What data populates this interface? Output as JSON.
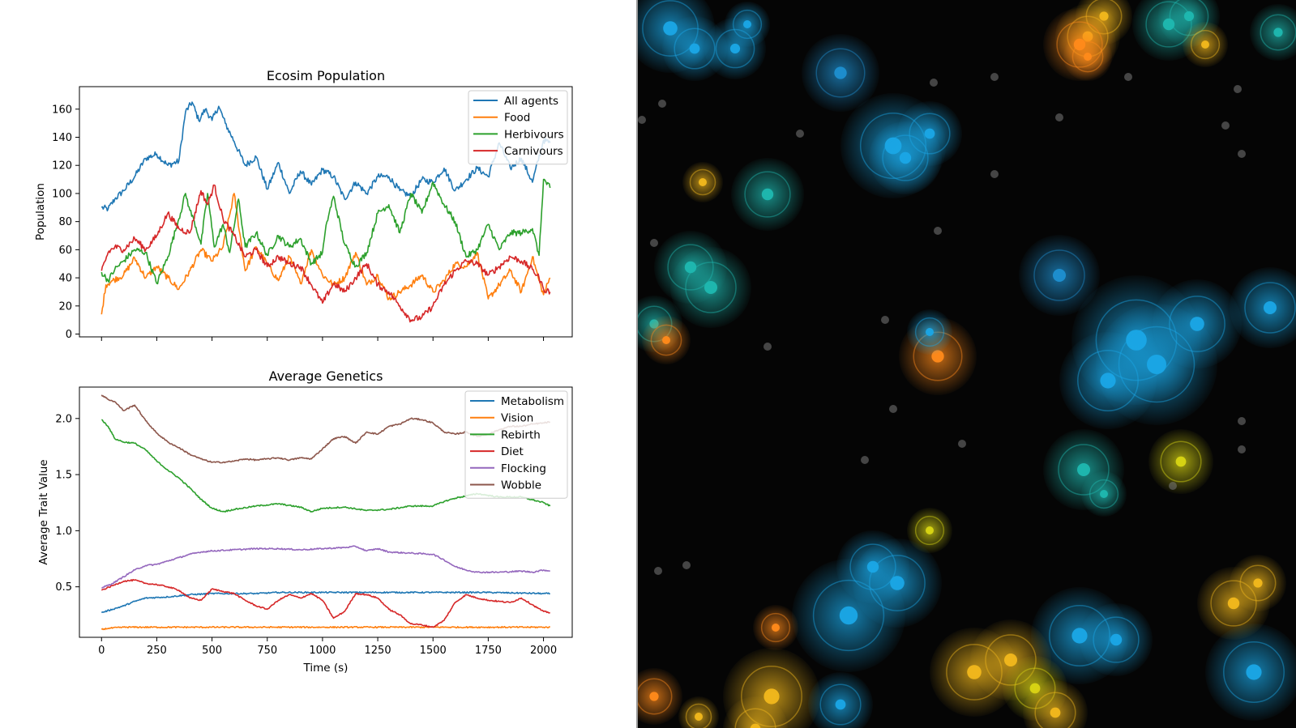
{
  "colors": {
    "blue": "#1f77b4",
    "orange": "#ff7f0e",
    "green": "#2ca02c",
    "red": "#d62728",
    "purple": "#9467bd",
    "brown": "#8c564b"
  },
  "chart_data": [
    {
      "type": "line",
      "title": "Ecosim Population",
      "xlabel": "",
      "ylabel": "Population",
      "xlim": [
        -100,
        2130
      ],
      "ylim": [
        -2,
        176
      ],
      "xticks": [
        0,
        250,
        500,
        750,
        1000,
        1250,
        1500,
        1750,
        2000
      ],
      "xtick_labels_shown": false,
      "yticks": [
        0,
        20,
        40,
        60,
        80,
        100,
        120,
        140,
        160
      ],
      "ytick_labels": [
        "0",
        "20",
        "40",
        "60",
        "80",
        "100",
        "120",
        "140",
        "160"
      ],
      "legend": "top-right",
      "series": [
        {
          "name": "All agents",
          "color_key": "blue",
          "x": [
            0,
            30,
            60,
            100,
            150,
            200,
            250,
            300,
            350,
            380,
            410,
            440,
            470,
            500,
            530,
            560,
            600,
            650,
            700,
            750,
            800,
            850,
            900,
            950,
            1000,
            1050,
            1100,
            1150,
            1200,
            1250,
            1300,
            1350,
            1400,
            1450,
            1500,
            1550,
            1600,
            1650,
            1700,
            1750,
            1800,
            1850,
            1900,
            1950,
            2000,
            2030
          ],
          "y": [
            90,
            89,
            96,
            102,
            112,
            125,
            128,
            120,
            123,
            158,
            165,
            152,
            160,
            152,
            162,
            150,
            137,
            120,
            126,
            103,
            122,
            100,
            116,
            106,
            117,
            112,
            96,
            108,
            100,
            112,
            112,
            102,
            98,
            110,
            108,
            118,
            102,
            110,
            118,
            112,
            136,
            118,
            125,
            108,
            138,
            136
          ]
        },
        {
          "name": "Food",
          "color_key": "orange",
          "x": [
            0,
            20,
            50,
            100,
            150,
            200,
            250,
            300,
            350,
            400,
            450,
            500,
            550,
            600,
            650,
            700,
            750,
            800,
            850,
            900,
            950,
            1000,
            1050,
            1100,
            1150,
            1200,
            1250,
            1300,
            1350,
            1400,
            1450,
            1500,
            1550,
            1600,
            1650,
            1700,
            1750,
            1800,
            1850,
            1900,
            1950,
            1980,
            2000,
            2030
          ],
          "y": [
            14,
            35,
            38,
            42,
            54,
            40,
            48,
            40,
            32,
            45,
            60,
            52,
            62,
            100,
            45,
            62,
            50,
            38,
            55,
            36,
            60,
            42,
            35,
            40,
            58,
            35,
            42,
            25,
            30,
            35,
            42,
            30,
            38,
            50,
            48,
            58,
            25,
            35,
            45,
            30,
            55,
            38,
            28,
            40
          ]
        },
        {
          "name": "Herbivours",
          "color_key": "green",
          "x": [
            0,
            30,
            60,
            100,
            150,
            200,
            250,
            300,
            350,
            380,
            400,
            420,
            450,
            480,
            510,
            550,
            580,
            620,
            650,
            700,
            750,
            800,
            850,
            900,
            950,
            1000,
            1020,
            1050,
            1100,
            1150,
            1200,
            1250,
            1300,
            1350,
            1400,
            1450,
            1500,
            1550,
            1600,
            1650,
            1700,
            1750,
            1800,
            1850,
            1900,
            1950,
            1980,
            2000,
            2030
          ],
          "y": [
            44,
            38,
            46,
            52,
            60,
            58,
            36,
            55,
            82,
            100,
            88,
            80,
            64,
            100,
            62,
            78,
            58,
            96,
            62,
            72,
            56,
            70,
            62,
            68,
            50,
            58,
            80,
            98,
            64,
            48,
            58,
            86,
            92,
            72,
            100,
            86,
            108,
            92,
            80,
            55,
            60,
            78,
            60,
            72,
            72,
            75,
            56,
            110,
            104
          ]
        },
        {
          "name": "Carnivours",
          "color_key": "red",
          "x": [
            0,
            30,
            60,
            100,
            150,
            200,
            250,
            300,
            350,
            400,
            450,
            480,
            510,
            550,
            600,
            650,
            700,
            750,
            800,
            850,
            900,
            950,
            1000,
            1050,
            1100,
            1150,
            1200,
            1250,
            1300,
            1350,
            1400,
            1450,
            1500,
            1550,
            1600,
            1650,
            1700,
            1750,
            1800,
            1850,
            1900,
            1950,
            1980,
            2000,
            2030
          ],
          "y": [
            45,
            58,
            62,
            60,
            68,
            60,
            70,
            86,
            75,
            72,
            102,
            92,
            106,
            82,
            70,
            55,
            60,
            48,
            55,
            50,
            48,
            35,
            22,
            36,
            30,
            40,
            50,
            35,
            30,
            20,
            10,
            12,
            20,
            35,
            45,
            52,
            50,
            42,
            48,
            55,
            52,
            46,
            40,
            32,
            30
          ]
        }
      ]
    },
    {
      "type": "line",
      "title": "Average Genetics",
      "xlabel": "Time (s)",
      "ylabel": "Average Trait Value",
      "xlim": [
        -100,
        2130
      ],
      "ylim": [
        0.05,
        2.28
      ],
      "xticks": [
        0,
        250,
        500,
        750,
        1000,
        1250,
        1500,
        1750,
        2000
      ],
      "xtick_labels": [
        "0",
        "250",
        "500",
        "750",
        "1000",
        "1250",
        "1500",
        "1750",
        "2000"
      ],
      "yticks": [
        0.5,
        1.0,
        1.5,
        2.0
      ],
      "ytick_labels": [
        "0.5",
        "1.0",
        "1.5",
        "2.0"
      ],
      "legend": "top-right",
      "series": [
        {
          "name": "Metabolism",
          "color_key": "blue",
          "x": [
            0,
            50,
            100,
            150,
            200,
            300,
            400,
            500,
            600,
            700,
            800,
            1000,
            1200,
            1500,
            1750,
            2000,
            2030
          ],
          "y": [
            0.27,
            0.3,
            0.33,
            0.37,
            0.4,
            0.41,
            0.43,
            0.44,
            0.44,
            0.44,
            0.45,
            0.45,
            0.45,
            0.45,
            0.45,
            0.44,
            0.44
          ]
        },
        {
          "name": "Vision",
          "color_key": "orange",
          "x": [
            0,
            30,
            100,
            500,
            1000,
            1500,
            2000,
            2030
          ],
          "y": [
            0.12,
            0.13,
            0.14,
            0.14,
            0.14,
            0.14,
            0.14,
            0.14
          ]
        },
        {
          "name": "Rebirth",
          "color_key": "green",
          "x": [
            0,
            30,
            60,
            100,
            150,
            200,
            250,
            300,
            350,
            400,
            450,
            500,
            550,
            600,
            700,
            800,
            900,
            950,
            1000,
            1100,
            1200,
            1300,
            1400,
            1500,
            1550,
            1600,
            1650,
            1700,
            1800,
            1900,
            2000,
            2030
          ],
          "y": [
            1.99,
            1.93,
            1.82,
            1.79,
            1.78,
            1.72,
            1.62,
            1.54,
            1.47,
            1.38,
            1.28,
            1.2,
            1.17,
            1.19,
            1.22,
            1.24,
            1.21,
            1.17,
            1.2,
            1.21,
            1.18,
            1.19,
            1.22,
            1.22,
            1.26,
            1.29,
            1.31,
            1.33,
            1.3,
            1.3,
            1.25,
            1.22
          ]
        },
        {
          "name": "Diet",
          "color_key": "red",
          "x": [
            0,
            50,
            100,
            150,
            200,
            250,
            300,
            350,
            400,
            450,
            500,
            550,
            600,
            650,
            700,
            750,
            800,
            850,
            900,
            950,
            1000,
            1050,
            1100,
            1150,
            1200,
            1250,
            1300,
            1350,
            1400,
            1450,
            1500,
            1550,
            1600,
            1650,
            1700,
            1750,
            1800,
            1850,
            1900,
            1950,
            2000,
            2030
          ],
          "y": [
            0.47,
            0.51,
            0.55,
            0.56,
            0.53,
            0.52,
            0.5,
            0.47,
            0.4,
            0.38,
            0.48,
            0.46,
            0.44,
            0.38,
            0.33,
            0.3,
            0.38,
            0.43,
            0.4,
            0.44,
            0.38,
            0.22,
            0.28,
            0.44,
            0.43,
            0.4,
            0.3,
            0.25,
            0.17,
            0.16,
            0.14,
            0.2,
            0.36,
            0.43,
            0.4,
            0.38,
            0.37,
            0.36,
            0.4,
            0.34,
            0.28,
            0.27
          ]
        },
        {
          "name": "Flocking",
          "color_key": "purple",
          "x": [
            0,
            50,
            100,
            150,
            200,
            250,
            300,
            350,
            400,
            450,
            500,
            600,
            700,
            800,
            900,
            1000,
            1100,
            1150,
            1200,
            1250,
            1300,
            1400,
            1500,
            1550,
            1600,
            1650,
            1700,
            1800,
            1900,
            1950,
            2000,
            2030
          ],
          "y": [
            0.49,
            0.53,
            0.59,
            0.65,
            0.69,
            0.7,
            0.73,
            0.76,
            0.79,
            0.81,
            0.82,
            0.83,
            0.84,
            0.84,
            0.83,
            0.84,
            0.85,
            0.86,
            0.82,
            0.84,
            0.81,
            0.8,
            0.79,
            0.74,
            0.68,
            0.65,
            0.63,
            0.63,
            0.64,
            0.63,
            0.65,
            0.64
          ]
        },
        {
          "name": "Wobble",
          "color_key": "brown",
          "x": [
            0,
            30,
            60,
            100,
            150,
            200,
            250,
            300,
            350,
            400,
            450,
            500,
            550,
            600,
            650,
            700,
            750,
            800,
            850,
            900,
            950,
            1000,
            1050,
            1100,
            1150,
            1200,
            1250,
            1300,
            1350,
            1400,
            1450,
            1500,
            1550,
            1600,
            1650,
            1700,
            1750,
            1800,
            1850,
            1900,
            1950,
            2000,
            2030
          ],
          "y": [
            2.21,
            2.17,
            2.15,
            2.07,
            2.12,
            1.98,
            1.87,
            1.79,
            1.74,
            1.68,
            1.64,
            1.61,
            1.61,
            1.62,
            1.64,
            1.63,
            1.64,
            1.65,
            1.63,
            1.65,
            1.64,
            1.73,
            1.82,
            1.84,
            1.78,
            1.88,
            1.86,
            1.93,
            1.95,
            2.0,
            1.99,
            1.96,
            1.88,
            1.86,
            1.88,
            1.84,
            1.86,
            1.9,
            1.93,
            1.93,
            1.95,
            1.96,
            1.97
          ]
        }
      ]
    }
  ],
  "simulation": {
    "background": "#050505",
    "cell_colors": [
      "#1aa7e6",
      "#1e8fd0",
      "#1fb8b0",
      "#ff8a1a",
      "#f2b81c",
      "#d9d614",
      "#7a7a7a"
    ]
  }
}
